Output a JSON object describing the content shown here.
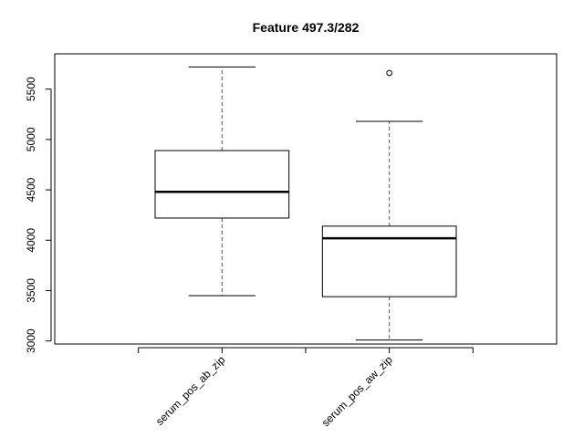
{
  "chart_data": {
    "type": "boxplot",
    "title": "Feature  497.3/282",
    "xlabel": "",
    "ylabel": "",
    "ylim": [
      2970,
      5850
    ],
    "yticks": [
      3000,
      3500,
      4000,
      4500,
      5000,
      5500
    ],
    "ytick_labels": [
      "3000",
      "3500",
      "4000",
      "4500",
      "5000",
      "5500"
    ],
    "categories": [
      "serum_pos_ab_zip",
      "serum_pos_aw_zip"
    ],
    "boxes": [
      {
        "min": 3450,
        "q1": 4220,
        "median": 4480,
        "q3": 4890,
        "max": 5720,
        "outliers": []
      },
      {
        "min": 3010,
        "q1": 3440,
        "median": 4020,
        "q3": 4140,
        "max": 5180,
        "outliers": [
          5660
        ]
      }
    ],
    "grid": false,
    "legend": "none"
  }
}
